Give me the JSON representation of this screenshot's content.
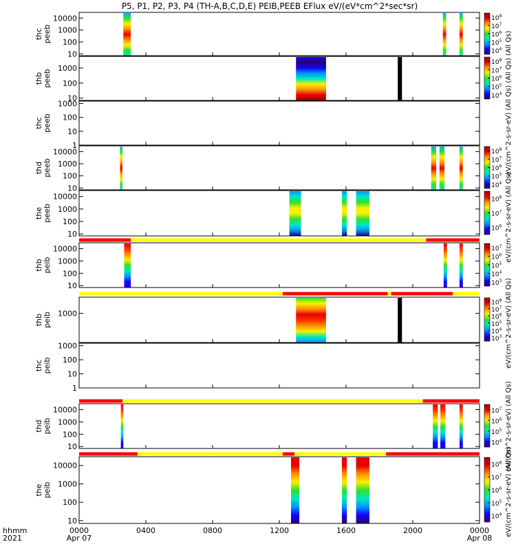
{
  "title": "P5, P1, P2, P3, P4 (TH-A,B,C,D,E) PEIB,PEEB EFlux eV/(eV*cm^2*sec*sr)",
  "x_axis": {
    "label_line1": "hhmm",
    "label_line2": "2021",
    "ticks": [
      {
        "hour": 0,
        "label": "0000",
        "date": "Apr 07"
      },
      {
        "hour": 4,
        "label": "0400",
        "date": ""
      },
      {
        "hour": 8,
        "label": "0800",
        "date": ""
      },
      {
        "hour": 12,
        "label": "1200",
        "date": ""
      },
      {
        "hour": 16,
        "label": "1600",
        "date": ""
      },
      {
        "hour": 20,
        "label": "2000",
        "date": ""
      },
      {
        "hour": 24,
        "label": "0000",
        "date": "Apr 08"
      }
    ],
    "range_hours": [
      0,
      24
    ]
  },
  "colors": {
    "spectrum": [
      "#2a0070",
      "#1400ff",
      "#0096ff",
      "#00e8c0",
      "#30e030",
      "#f8f000",
      "#ff9000",
      "#e80000",
      "#a00000"
    ],
    "mode_red": "#ff0000",
    "mode_yellow": "#ffff00",
    "fill_bar": "#000000"
  },
  "chart_data": [
    {
      "type": "heatmap",
      "ylabel": [
        "thc",
        "peeb"
      ],
      "yscale": "log",
      "ylim": [
        7,
        30000
      ],
      "yticks": [
        {
          "v": 10,
          "t": "10"
        },
        {
          "v": 100,
          "t": "100"
        },
        {
          "v": 1000,
          "t": "1000"
        },
        {
          "v": 10000,
          "t": "10000"
        }
      ],
      "blocks": [
        {
          "x": [
            2.65,
            3.1
          ],
          "profile": "peeb_a"
        },
        {
          "x": [
            21.8,
            22.0
          ],
          "profile": "peeb_a"
        },
        {
          "x": [
            22.8,
            23.0
          ],
          "profile": "peeb_a"
        }
      ],
      "mode_bar": null,
      "colorbar": {
        "exp": [
          4,
          5,
          6,
          7,
          8
        ]
      }
    },
    {
      "type": "heatmap",
      "ylabel": [
        "thb",
        "peeb"
      ],
      "yscale": "log",
      "ylim": [
        7,
        6000
      ],
      "yticks": [
        {
          "v": 10,
          "t": "10"
        },
        {
          "v": 100,
          "t": "100"
        },
        {
          "v": 1000,
          "t": "1000"
        }
      ],
      "blocks": [
        {
          "x": [
            13.0,
            14.8
          ],
          "profile": "peeb_b"
        },
        {
          "x": [
            19.1,
            19.35
          ],
          "profile": "fill"
        }
      ],
      "mode_bar": null,
      "colorbar": {
        "exp": [
          4,
          5,
          6,
          7,
          8
        ]
      }
    },
    {
      "type": "heatmap",
      "ylabel": [
        "thc",
        "peeb"
      ],
      "yscale": "log",
      "ylim": [
        1,
        1500
      ],
      "yticks": [
        {
          "v": 1,
          "t": "1"
        },
        {
          "v": 10,
          "t": "10"
        },
        {
          "v": 100,
          "t": "100"
        },
        {
          "v": 1000,
          "t": "1000"
        }
      ],
      "blocks": [],
      "mode_bar": null,
      "colorbar": null
    },
    {
      "type": "heatmap",
      "ylabel": [
        "thd",
        "peeb"
      ],
      "yscale": "log",
      "ylim": [
        7,
        30000
      ],
      "yticks": [
        {
          "v": 10,
          "t": "10"
        },
        {
          "v": 100,
          "t": "100"
        },
        {
          "v": 1000,
          "t": "1000"
        },
        {
          "v": 10000,
          "t": "10000"
        }
      ],
      "blocks": [
        {
          "x": [
            2.45,
            2.6
          ],
          "profile": "peeb_a"
        },
        {
          "x": [
            21.1,
            21.4
          ],
          "profile": "peeb_a"
        },
        {
          "x": [
            21.6,
            21.9
          ],
          "profile": "peeb_a"
        },
        {
          "x": [
            22.8,
            23.0
          ],
          "profile": "peeb_a"
        }
      ],
      "mode_bar": null,
      "colorbar": {
        "exp": [
          4,
          5,
          6,
          7,
          8
        ]
      }
    },
    {
      "type": "heatmap",
      "ylabel": [
        "the",
        "peeb"
      ],
      "yscale": "log",
      "ylim": [
        7,
        30000
      ],
      "yticks": [
        {
          "v": 10,
          "t": "10"
        },
        {
          "v": 100,
          "t": "100"
        },
        {
          "v": 1000,
          "t": "1000"
        },
        {
          "v": 10000,
          "t": "10000"
        }
      ],
      "blocks": [
        {
          "x": [
            12.6,
            13.3
          ],
          "profile": "peeb_e"
        },
        {
          "x": [
            15.75,
            16.05
          ],
          "profile": "peeb_e"
        },
        {
          "x": [
            16.6,
            17.4
          ],
          "profile": "peeb_e"
        }
      ],
      "mode_bar": [
        {
          "x": [
            0,
            3.1
          ],
          "c": "red"
        },
        {
          "x": [
            3.1,
            20.8
          ],
          "c": "yellow"
        },
        {
          "x": [
            20.8,
            24
          ],
          "c": "red"
        }
      ],
      "colorbar": {
        "exp": [
          6,
          7,
          8
        ]
      }
    },
    {
      "type": "heatmap",
      "ylabel": [
        "thb",
        "peib"
      ],
      "yscale": "log",
      "ylim": [
        7,
        30000
      ],
      "yticks": [
        {
          "v": 10,
          "t": "10"
        },
        {
          "v": 100,
          "t": "100"
        },
        {
          "v": 1000,
          "t": "1000"
        },
        {
          "v": 10000,
          "t": "10000"
        }
      ],
      "blocks": [
        {
          "x": [
            2.7,
            3.1
          ],
          "profile": "peib_a"
        },
        {
          "x": [
            21.85,
            22.05
          ],
          "profile": "peib_a"
        },
        {
          "x": [
            22.8,
            23.0
          ],
          "profile": "peib_a"
        }
      ],
      "mode_bar": [
        {
          "x": [
            0,
            12.2
          ],
          "c": "yellow"
        },
        {
          "x": [
            12.2,
            18.5
          ],
          "c": "red"
        },
        {
          "x": [
            18.5,
            18.7
          ],
          "c": "yellow"
        },
        {
          "x": [
            18.7,
            22.4
          ],
          "c": "red"
        },
        {
          "x": [
            22.4,
            24
          ],
          "c": "yellow"
        }
      ],
      "colorbar": {
        "exp": [
          3,
          4,
          5,
          6,
          7
        ]
      }
    },
    {
      "type": "heatmap",
      "ylabel": [
        "thb",
        "peib"
      ],
      "yscale": "log",
      "ylim": [
        40,
        6000
      ],
      "yticks": [
        {
          "v": 1000,
          "t": "1000"
        }
      ],
      "blocks": [
        {
          "x": [
            13.0,
            14.8
          ],
          "profile": "peib_b"
        },
        {
          "x": [
            19.1,
            19.35
          ],
          "profile": "fill"
        }
      ],
      "mode_bar": null,
      "colorbar": {
        "exp": [
          3,
          4,
          5,
          6,
          7,
          8
        ]
      }
    },
    {
      "type": "heatmap",
      "ylabel": [
        "thc",
        "peib"
      ],
      "yscale": "log",
      "ylim": [
        1,
        1500
      ],
      "yticks": [
        {
          "v": 1,
          "t": "1"
        },
        {
          "v": 10,
          "t": "10"
        },
        {
          "v": 100,
          "t": "100"
        },
        {
          "v": 1000,
          "t": "1000"
        }
      ],
      "blocks": [],
      "mode_bar": [
        {
          "x": [
            0,
            2.6
          ],
          "c": "red"
        },
        {
          "x": [
            2.6,
            20.6
          ],
          "c": "yellow"
        },
        {
          "x": [
            20.6,
            24
          ],
          "c": "red"
        }
      ],
      "colorbar": null
    },
    {
      "type": "heatmap",
      "ylabel": [
        "thd",
        "peib"
      ],
      "yscale": "log",
      "ylim": [
        7,
        30000
      ],
      "yticks": [
        {
          "v": 10,
          "t": "10"
        },
        {
          "v": 100,
          "t": "100"
        },
        {
          "v": 1000,
          "t": "1000"
        },
        {
          "v": 10000,
          "t": "10000"
        }
      ],
      "blocks": [
        {
          "x": [
            2.5,
            2.65
          ],
          "profile": "peib_a"
        },
        {
          "x": [
            21.2,
            21.5
          ],
          "profile": "peib_a"
        },
        {
          "x": [
            21.65,
            21.95
          ],
          "profile": "peib_a"
        },
        {
          "x": [
            22.8,
            23.0
          ],
          "profile": "peib_a"
        }
      ],
      "mode_bar": [
        {
          "x": [
            0,
            3.5
          ],
          "c": "red"
        },
        {
          "x": [
            3.5,
            12.2
          ],
          "c": "yellow"
        },
        {
          "x": [
            12.2,
            18.4
          ],
          "c": "red"
        },
        {
          "x": [
            12.9,
            18.4
          ],
          "c": "yellow"
        },
        {
          "x": [
            18.4,
            24
          ],
          "c": "red"
        }
      ],
      "colorbar": {
        "exp": [
          4,
          5,
          6,
          7
        ]
      }
    },
    {
      "type": "heatmap",
      "ylabel": [
        "the",
        "peib"
      ],
      "yscale": "log",
      "ylim": [
        7,
        30000
      ],
      "yticks": [
        {
          "v": 10,
          "t": "10"
        },
        {
          "v": 100,
          "t": "100"
        },
        {
          "v": 1000,
          "t": "1000"
        },
        {
          "v": 10000,
          "t": "10000"
        }
      ],
      "blocks": [
        {
          "x": [
            12.7,
            13.2
          ],
          "profile": "peib_e"
        },
        {
          "x": [
            15.75,
            16.05
          ],
          "profile": "peib_e"
        },
        {
          "x": [
            16.6,
            17.4
          ],
          "profile": "peib_e"
        }
      ],
      "mode_bar": null,
      "colorbar": {
        "exp": [
          4,
          5,
          6,
          7,
          8
        ]
      }
    }
  ],
  "colorbar_titles": [
    "eV/(cm^2-s-sr-eV) (All Qs) (All Qs) (All Qs)",
    "eV/(cm^2-s-sr-eV) (All Qs)",
    "eV/(cm^2-s-sr-eV) (All Qs)",
    "eV/(cm^2-s-sr-eV) (All Qs)",
    "eV/(cm^2-s-sr-eV) (All Qs)",
    "eV/(cm^2-s-sr-eV) (All Qs)",
    "eV/(cm^2-s-sr-eV) (All Qs)",
    "eV/(cm^2-s-sr-eV) (All Qs)",
    "eV/(cm^2-s-sr-eV) (All Qs)"
  ]
}
